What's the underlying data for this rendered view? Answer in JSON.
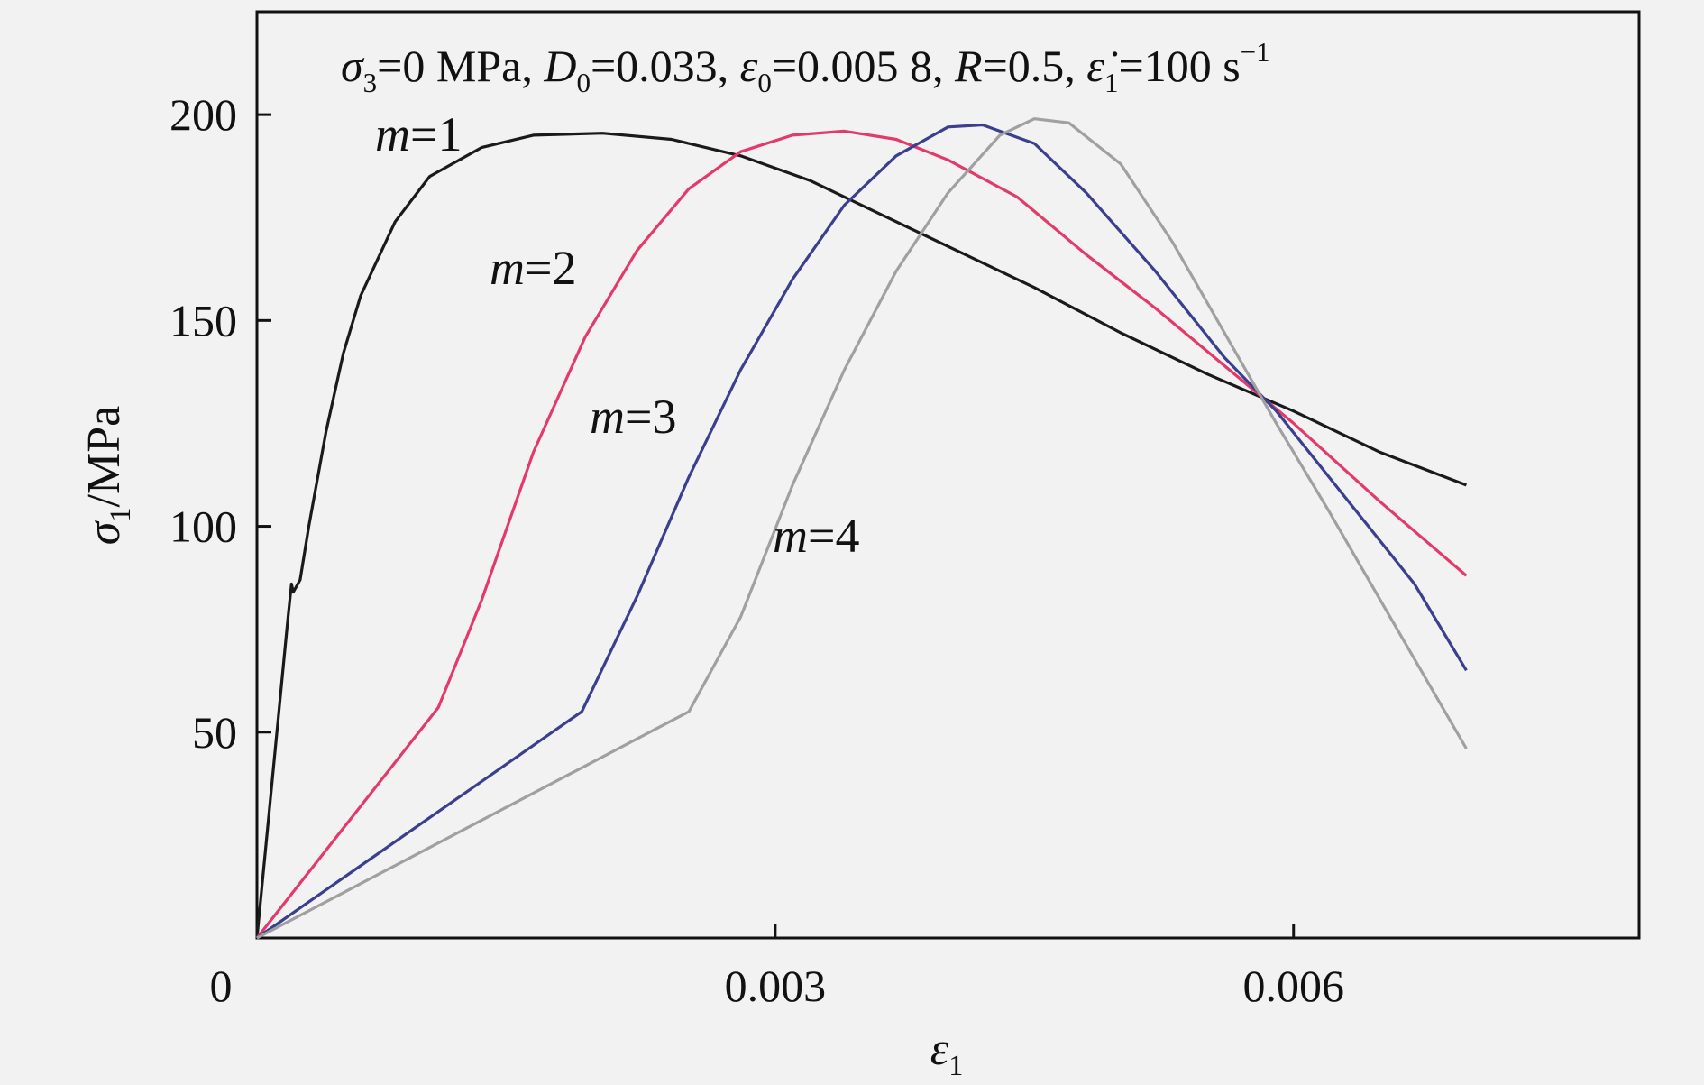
{
  "chart_data": {
    "type": "line",
    "title": {
      "sigma3": "σ",
      "sigma3_sub": "3",
      "sigma3_val": "=0 MPa, ",
      "d0": "D",
      "d0_sub": "0",
      "d0_val": "=0.033, ",
      "eps0": "ε",
      "eps0_sub": "0",
      "eps0_val": "=0.005 8, ",
      "r": "R",
      "r_val": "=0.5, ",
      "rate": "ε̇",
      "rate_sub": "1",
      "rate_val": "=100 s",
      "rate_sup": "−1"
    },
    "xlabel": {
      "sym": "ε",
      "sub": "1"
    },
    "ylabel": {
      "sym": "σ",
      "sub": "1",
      "unit": "/MPa"
    },
    "xlim": [
      0,
      0.008
    ],
    "ylim": [
      0,
      225
    ],
    "x_ticks": [
      {
        "value": 0,
        "label": "0"
      },
      {
        "value": 0.003,
        "label": "0.003"
      },
      {
        "value": 0.006,
        "label": "0.006"
      }
    ],
    "y_ticks": [
      {
        "value": 50,
        "label": "50"
      },
      {
        "value": 100,
        "label": "100"
      },
      {
        "value": 150,
        "label": "150"
      },
      {
        "value": 200,
        "label": "200"
      }
    ],
    "series": [
      {
        "name": "m=1",
        "label_m": "m",
        "label_val": "=1",
        "color": "#1a1a1a",
        "points": [
          [
            0,
            0
          ],
          [
            0.00018,
            78
          ],
          [
            0.0002,
            86
          ],
          [
            0.00021,
            84
          ],
          [
            0.00025,
            87
          ],
          [
            0.0003,
            100
          ],
          [
            0.0004,
            123
          ],
          [
            0.0005,
            142
          ],
          [
            0.0006,
            156
          ],
          [
            0.0008,
            174
          ],
          [
            0.001,
            185
          ],
          [
            0.0013,
            192
          ],
          [
            0.0016,
            195
          ],
          [
            0.002,
            195.5
          ],
          [
            0.0024,
            194
          ],
          [
            0.0028,
            190
          ],
          [
            0.0032,
            184
          ],
          [
            0.0036,
            176
          ],
          [
            0.004,
            168
          ],
          [
            0.0045,
            158
          ],
          [
            0.005,
            147
          ],
          [
            0.0055,
            137
          ],
          [
            0.006,
            128
          ],
          [
            0.0065,
            118
          ],
          [
            0.007,
            110
          ]
        ]
      },
      {
        "name": "m=2",
        "label_m": "m",
        "label_val": "=2",
        "color": "#e23a6a",
        "points": [
          [
            0,
            0
          ],
          [
            0.00105,
            56
          ],
          [
            0.0013,
            82
          ],
          [
            0.0016,
            118
          ],
          [
            0.0019,
            146
          ],
          [
            0.0022,
            167
          ],
          [
            0.0025,
            182
          ],
          [
            0.0028,
            191
          ],
          [
            0.0031,
            195
          ],
          [
            0.0034,
            196
          ],
          [
            0.0037,
            194
          ],
          [
            0.004,
            189
          ],
          [
            0.0044,
            180
          ],
          [
            0.0048,
            166
          ],
          [
            0.0052,
            153
          ],
          [
            0.0056,
            139
          ],
          [
            0.006,
            125
          ],
          [
            0.0065,
            106
          ],
          [
            0.007,
            88
          ]
        ]
      },
      {
        "name": "m=3",
        "label_m": "m",
        "label_val": "=3",
        "color": "#3a3f8e",
        "points": [
          [
            0,
            0
          ],
          [
            0.00188,
            55
          ],
          [
            0.0022,
            83
          ],
          [
            0.0025,
            112
          ],
          [
            0.0028,
            138
          ],
          [
            0.0031,
            160
          ],
          [
            0.0034,
            178
          ],
          [
            0.0037,
            190
          ],
          [
            0.004,
            197
          ],
          [
            0.0042,
            197.5
          ],
          [
            0.0045,
            193
          ],
          [
            0.0048,
            181
          ],
          [
            0.0052,
            162
          ],
          [
            0.0056,
            141
          ],
          [
            0.0059,
            128
          ],
          [
            0.0063,
            107
          ],
          [
            0.0067,
            86
          ],
          [
            0.007,
            65
          ]
        ]
      },
      {
        "name": "m=4",
        "label_m": "m",
        "label_val": "=4",
        "color": "#a0a0a0",
        "points": [
          [
            0,
            0
          ],
          [
            0.0025,
            55
          ],
          [
            0.0028,
            78
          ],
          [
            0.0031,
            110
          ],
          [
            0.0034,
            138
          ],
          [
            0.0037,
            162
          ],
          [
            0.004,
            181
          ],
          [
            0.0043,
            195
          ],
          [
            0.0045,
            199
          ],
          [
            0.0047,
            198
          ],
          [
            0.005,
            188
          ],
          [
            0.0053,
            169
          ],
          [
            0.0056,
            147
          ],
          [
            0.0059,
            125
          ],
          [
            0.0062,
            104
          ],
          [
            0.0066,
            75
          ],
          [
            0.007,
            46
          ]
        ]
      }
    ]
  }
}
